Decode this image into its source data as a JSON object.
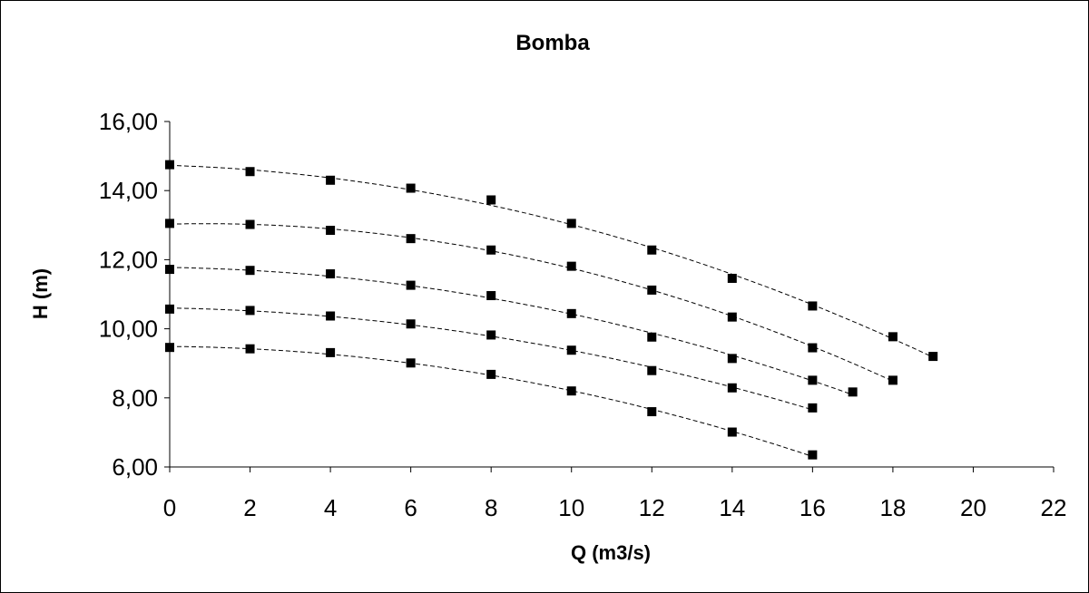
{
  "chart_data": {
    "type": "scatter",
    "title": "Bomba",
    "xlabel": "Q (m3/s)",
    "ylabel": "H (m)",
    "xlim": [
      0,
      22
    ],
    "ylim": [
      6,
      16
    ],
    "x_ticks": [
      "0",
      "2",
      "4",
      "6",
      "8",
      "10",
      "12",
      "14",
      "16",
      "18",
      "20",
      "22"
    ],
    "y_ticks": [
      "6,00",
      "8,00",
      "10,00",
      "12,00",
      "14,00",
      "16,00"
    ],
    "grid": false,
    "legend": "none",
    "marker": "square",
    "trendline": "dashed polynomial",
    "series": [
      {
        "x": [
          0,
          2,
          4,
          6,
          8,
          10,
          12,
          14,
          16,
          18,
          19
        ],
        "y": [
          14.75,
          14.55,
          14.3,
          14.07,
          13.73,
          13.05,
          12.28,
          11.46,
          10.66,
          9.77,
          9.2
        ]
      },
      {
        "x": [
          0,
          2,
          4,
          6,
          8,
          10,
          12,
          14,
          16,
          18
        ],
        "y": [
          13.05,
          13.02,
          12.85,
          12.61,
          12.28,
          11.81,
          11.12,
          10.34,
          9.45,
          8.51
        ]
      },
      {
        "x": [
          0,
          2,
          4,
          6,
          8,
          10,
          12,
          14,
          16,
          17
        ],
        "y": [
          11.72,
          11.69,
          11.59,
          11.26,
          10.96,
          10.44,
          9.76,
          9.14,
          8.51,
          8.17
        ]
      },
      {
        "x": [
          0,
          2,
          4,
          6,
          8,
          10,
          12,
          14,
          16
        ],
        "y": [
          10.57,
          10.53,
          10.37,
          10.14,
          9.82,
          9.38,
          8.79,
          8.29,
          7.71
        ]
      },
      {
        "x": [
          0,
          2,
          4,
          6,
          8,
          10,
          12,
          14,
          16
        ],
        "y": [
          9.46,
          9.42,
          9.31,
          9.01,
          8.68,
          8.2,
          7.6,
          7.01,
          6.35
        ]
      }
    ]
  },
  "colors": {
    "marker": "#000000",
    "line": "#000000",
    "background": "#ffffff"
  }
}
